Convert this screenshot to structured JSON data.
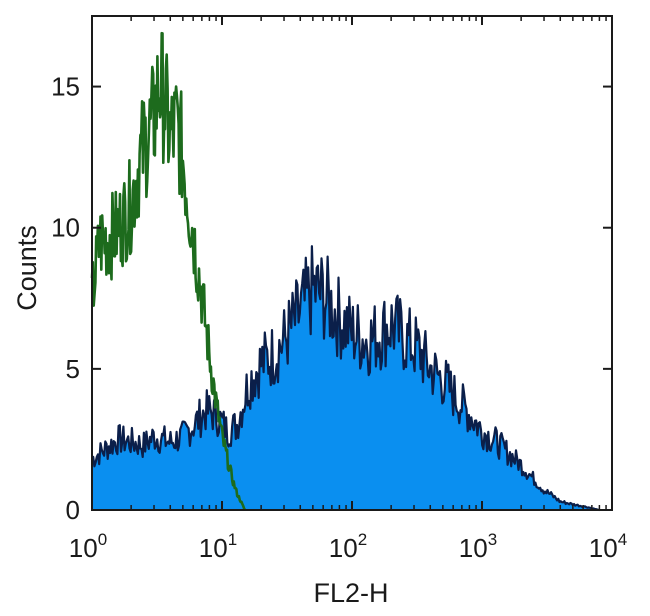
{
  "chart_data": {
    "type": "area",
    "xlabel": "FL2-H",
    "ylabel": "Counts",
    "xscale": "log",
    "xlim": [
      1,
      10000
    ],
    "ylim": [
      0,
      17.5
    ],
    "grid": false,
    "x_ticks": [
      {
        "base": "10",
        "exp": "0",
        "value": 1
      },
      {
        "base": "10",
        "exp": "1",
        "value": 10
      },
      {
        "base": "10",
        "exp": "2",
        "value": 100
      },
      {
        "base": "10",
        "exp": "3",
        "value": 1000
      },
      {
        "base": "10",
        "exp": "4",
        "value": 10000
      }
    ],
    "y_ticks": [
      {
        "label": "0",
        "value": 0
      },
      {
        "label": "5",
        "value": 5
      },
      {
        "label": "10",
        "value": 10
      },
      {
        "label": "15",
        "value": 15
      }
    ],
    "series": [
      {
        "style": "filled",
        "color": "#0a8ff0",
        "edge_color": "#0b1f4a",
        "x": [
          1,
          1.3,
          1.6,
          2,
          2.5,
          3,
          4,
          5,
          6,
          7.5,
          9,
          11,
          13,
          16,
          20,
          25,
          30,
          40,
          50,
          60,
          80,
          100,
          130,
          160,
          200,
          250,
          320,
          400,
          500,
          650,
          800,
          1000,
          1300,
          1600,
          2000,
          2500,
          3000,
          3500,
          4000,
          5000,
          6500,
          8000
        ],
        "y": [
          1.8,
          2.2,
          2.5,
          2.4,
          2.3,
          2.6,
          2.4,
          2.6,
          3.0,
          3.5,
          3.4,
          2.8,
          3.0,
          4.5,
          5.2,
          5.5,
          6.0,
          7.0,
          7.8,
          7.6,
          6.8,
          6.3,
          6.0,
          6.2,
          6.6,
          6.1,
          5.7,
          5.0,
          4.6,
          3.9,
          3.4,
          2.8,
          2.4,
          2.0,
          1.6,
          1.1,
          0.7,
          0.5,
          0.3,
          0.2,
          0.1,
          0
        ]
      },
      {
        "style": "line",
        "color": "#1d6b1d",
        "x": [
          1,
          1.15,
          1.3,
          1.5,
          1.7,
          2,
          2.3,
          2.6,
          3,
          3.3,
          3.6,
          4,
          4.5,
          5,
          5.5,
          6,
          7,
          8,
          9,
          10,
          11,
          12,
          13,
          14,
          15
        ],
        "y": [
          7.5,
          9.5,
          9.6,
          9.8,
          10.2,
          10.8,
          12.3,
          13.1,
          13.8,
          15.2,
          14.5,
          13.2,
          13.6,
          12.5,
          11.0,
          9.8,
          7.6,
          5.5,
          3.8,
          2.6,
          1.8,
          1.1,
          0.6,
          0.3,
          0
        ]
      }
    ]
  }
}
